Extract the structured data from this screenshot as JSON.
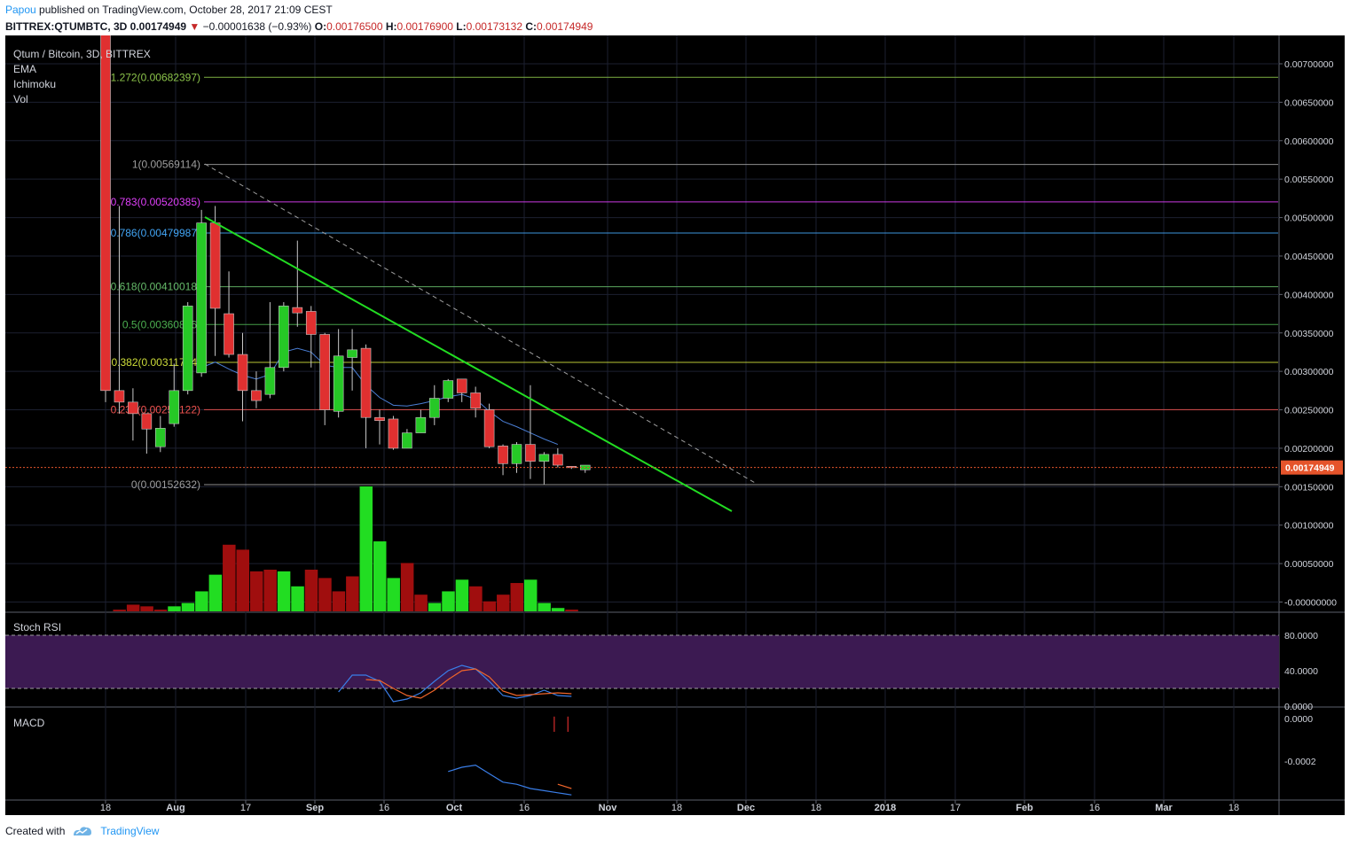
{
  "header": {
    "user": "Papou",
    "published": "published on TradingView.com, October 28, 2017 21:09 CEST",
    "symbol": "BITTREX:QTUMBTC, 3D",
    "last": "0.00174949",
    "change": "−0.00001638 (−0.93%)",
    "o_label": "O:",
    "o_value": "0.00176500",
    "h_label": "H:",
    "h_value": "0.00176900",
    "l_label": "L:",
    "l_value": "0.00173132",
    "c_label": "C:",
    "c_value": "0.00174949"
  },
  "legend": {
    "title": "Qtum / Bitcoin, 3D, BITTREX",
    "items": [
      "EMA",
      "Ichimoku",
      "Vol"
    ]
  },
  "panes": {
    "stoch": "Stoch RSI",
    "macd": "MACD"
  },
  "footer": {
    "created": "Created with",
    "brand": "TradingView"
  },
  "colors": {
    "up": "#26c826",
    "down": "#e03030",
    "vol_up": "#22dd22",
    "vol_down": "#a00e0e",
    "trendline": "#22dd22",
    "price_line": "#e5542b",
    "stoch_band": "#3c1a52",
    "blue": "#3a7ee8",
    "orange": "#f0652a"
  },
  "chart_data": {
    "type": "candlestick",
    "price_axis": {
      "ylim": [
        -5e-05,
        0.0074
      ],
      "ticks": [
        "0.00700000",
        "0.00650000",
        "0.00600000",
        "0.00550000",
        "0.00500000",
        "0.00450000",
        "0.00400000",
        "0.00350000",
        "0.00300000",
        "0.00250000",
        "0.00200000",
        "0.00150000",
        "0.00100000",
        "0.00050000",
        "-0.00000000"
      ],
      "current_price": "0.00174949"
    },
    "time_axis": {
      "labels": [
        "18",
        "Aug",
        "17",
        "Sep",
        "16",
        "Oct",
        "16",
        "Nov",
        "18",
        "Dec",
        "18",
        "2018",
        "17",
        "Feb",
        "16",
        "Mar",
        "18"
      ],
      "bold": [
        "Aug",
        "Sep",
        "Oct",
        "Nov",
        "Dec",
        "2018",
        "Feb",
        "Mar"
      ]
    },
    "fib_levels": [
      {
        "label": "1.272(0.00682397)",
        "value": 0.00682397,
        "color": "#8bc34a"
      },
      {
        "label": "1(0.00569114)",
        "value": 0.00569114,
        "color": "#9e9e9e"
      },
      {
        "label": "0.783(0.00520385)",
        "value": 0.00520385,
        "color": "#e040fb"
      },
      {
        "label": "0.786(0.00479987)",
        "value": 0.00479987,
        "color": "#42a5f5"
      },
      {
        "label": "0.618(0.00410018)",
        "value": 0.00410018,
        "color": "#66bb6a"
      },
      {
        "label": "0.5(0.00360876)",
        "value": 0.00360876,
        "color": "#4caf50"
      },
      {
        "label": "0.382(0.00311734)",
        "value": 0.00311734,
        "color": "#cddc39"
      },
      {
        "label": "0.236(0.00250122)",
        "value": 0.00250122,
        "color": "#ef5350"
      },
      {
        "label": "0(0.00152632)",
        "value": 0.00152632,
        "color": "#9e9e9e"
      }
    ],
    "candles": [
      {
        "o": 0.0074,
        "h": 0.0074,
        "l": 0.0026,
        "c": 0.00275
      },
      {
        "o": 0.00275,
        "h": 0.00515,
        "l": 0.00245,
        "c": 0.0026
      },
      {
        "o": 0.0026,
        "h": 0.00278,
        "l": 0.0021,
        "c": 0.00245
      },
      {
        "o": 0.00245,
        "h": 0.00245,
        "l": 0.00193,
        "c": 0.00225
      },
      {
        "o": 0.00202,
        "h": 0.00242,
        "l": 0.00195,
        "c": 0.00226
      },
      {
        "o": 0.00232,
        "h": 0.0031,
        "l": 0.00228,
        "c": 0.00275
      },
      {
        "o": 0.00275,
        "h": 0.0039,
        "l": 0.0027,
        "c": 0.00385
      },
      {
        "o": 0.00298,
        "h": 0.0051,
        "l": 0.00293,
        "c": 0.00493
      },
      {
        "o": 0.00493,
        "h": 0.00515,
        "l": 0.0032,
        "c": 0.00382
      },
      {
        "o": 0.00375,
        "h": 0.0043,
        "l": 0.00318,
        "c": 0.00322
      },
      {
        "o": 0.00322,
        "h": 0.0035,
        "l": 0.00235,
        "c": 0.00275
      },
      {
        "o": 0.00275,
        "h": 0.003,
        "l": 0.00252,
        "c": 0.00262
      },
      {
        "o": 0.0027,
        "h": 0.0039,
        "l": 0.00265,
        "c": 0.00305
      },
      {
        "o": 0.00305,
        "h": 0.0039,
        "l": 0.003,
        "c": 0.00385
      },
      {
        "o": 0.00383,
        "h": 0.0047,
        "l": 0.00358,
        "c": 0.00376
      },
      {
        "o": 0.00378,
        "h": 0.00385,
        "l": 0.00305,
        "c": 0.00348
      },
      {
        "o": 0.00348,
        "h": 0.0035,
        "l": 0.0023,
        "c": 0.0025
      },
      {
        "o": 0.00248,
        "h": 0.00355,
        "l": 0.0024,
        "c": 0.0032
      },
      {
        "o": 0.00318,
        "h": 0.00355,
        "l": 0.00275,
        "c": 0.00328
      },
      {
        "o": 0.0033,
        "h": 0.00335,
        "l": 0.002,
        "c": 0.0024
      },
      {
        "o": 0.0024,
        "h": 0.0025,
        "l": 0.00205,
        "c": 0.00236
      },
      {
        "o": 0.00238,
        "h": 0.00242,
        "l": 0.00198,
        "c": 0.002
      },
      {
        "o": 0.002,
        "h": 0.00225,
        "l": 0.002,
        "c": 0.0022
      },
      {
        "o": 0.0022,
        "h": 0.0025,
        "l": 0.0022,
        "c": 0.0024
      },
      {
        "o": 0.0024,
        "h": 0.00282,
        "l": 0.0023,
        "c": 0.00265
      },
      {
        "o": 0.00265,
        "h": 0.0029,
        "l": 0.0026,
        "c": 0.00288
      },
      {
        "o": 0.0029,
        "h": 0.0029,
        "l": 0.0026,
        "c": 0.00272
      },
      {
        "o": 0.00272,
        "h": 0.0028,
        "l": 0.0024,
        "c": 0.00252
      },
      {
        "o": 0.0025,
        "h": 0.00258,
        "l": 0.002,
        "c": 0.00202
      },
      {
        "o": 0.00203,
        "h": 0.00205,
        "l": 0.00165,
        "c": 0.0018
      },
      {
        "o": 0.0018,
        "h": 0.00208,
        "l": 0.00168,
        "c": 0.00205
      },
      {
        "o": 0.00205,
        "h": 0.00282,
        "l": 0.0016,
        "c": 0.00183
      },
      {
        "o": 0.00183,
        "h": 0.00195,
        "l": 0.00153,
        "c": 0.00192
      },
      {
        "o": 0.00192,
        "h": 0.002,
        "l": 0.00175,
        "c": 0.00178
      },
      {
        "o": 0.001765,
        "h": 0.001769,
        "l": 0.00173132,
        "c": 0.00174949
      }
    ],
    "last_candle": {
      "o": 0.00172,
      "h": 0.00178,
      "l": 0.00168,
      "c": 0.00178
    },
    "volume": [
      0,
      1e-05,
      4e-05,
      3e-05,
      1e-05,
      3e-05,
      5e-05,
      0.00012,
      0.00022,
      0.0004,
      0.00037,
      0.00024,
      0.00025,
      0.00024,
      0.00015,
      0.00025,
      0.0002,
      0.00012,
      0.00021,
      0.00075,
      0.00042,
      0.0002,
      0.00029,
      0.0001,
      5e-05,
      0.00012,
      0.00019,
      0.00015,
      6e-05,
      0.0001,
      0.00017,
      0.00019,
      5e-05,
      2e-05,
      1e-05
    ],
    "volume_direction": [
      "down",
      "down",
      "down",
      "down",
      "down",
      "up",
      "up",
      "up",
      "up",
      "down",
      "down",
      "down",
      "down",
      "up",
      "up",
      "down",
      "down",
      "down",
      "down",
      "up",
      "up",
      "up",
      "down",
      "down",
      "up",
      "up",
      "up",
      "down",
      "down",
      "down",
      "down",
      "up",
      "up",
      "up",
      "down"
    ],
    "ema": [
      null,
      null,
      null,
      null,
      null,
      null,
      null,
      0.00305,
      0.00312,
      0.00303,
      0.00295,
      0.0029,
      0.00296,
      0.00325,
      0.0033,
      0.00325,
      0.00308,
      0.00305,
      0.00305,
      0.00282,
      0.00266,
      0.00256,
      0.00255,
      0.00258,
      0.00262,
      0.00267,
      0.0027,
      0.00264,
      0.00248,
      0.00235,
      0.00228,
      0.0022,
      0.00212,
      0.00205,
      null
    ],
    "stoch_rsi": {
      "ylim": [
        0,
        100
      ],
      "ticks": [
        "80.0000",
        "40.0000",
        "0.0000"
      ],
      "band": [
        20,
        80
      ],
      "k": [
        null,
        null,
        null,
        null,
        null,
        null,
        null,
        null,
        null,
        null,
        null,
        null,
        null,
        null,
        null,
        null,
        null,
        16,
        35,
        35,
        28,
        5,
        8,
        15,
        28,
        40,
        46,
        42,
        28,
        12,
        9,
        12,
        18,
        12,
        11
      ],
      "d": [
        null,
        null,
        null,
        null,
        null,
        null,
        null,
        null,
        null,
        null,
        null,
        null,
        null,
        null,
        null,
        null,
        null,
        null,
        null,
        30,
        29,
        20,
        12,
        9,
        18,
        30,
        40,
        42,
        33,
        17,
        12,
        13,
        14,
        15,
        14
      ]
    },
    "macd": {
      "ylim": [
        -0.00038,
        2e-05
      ],
      "ticks": [
        "0.0000",
        "-0.0002"
      ],
      "macd": [
        null,
        null,
        null,
        null,
        null,
        null,
        null,
        null,
        null,
        null,
        null,
        null,
        null,
        null,
        null,
        null,
        null,
        null,
        null,
        null,
        null,
        null,
        null,
        null,
        null,
        -0.00025,
        -0.00023,
        -0.00022,
        -0.00026,
        -0.0003,
        -0.00031,
        -0.00033,
        -0.00034,
        -0.00035,
        -0.00036
      ],
      "signal": [
        null,
        null,
        null,
        null,
        null,
        null,
        null,
        null,
        null,
        null,
        null,
        null,
        null,
        null,
        null,
        null,
        null,
        null,
        null,
        null,
        null,
        null,
        null,
        null,
        null,
        null,
        null,
        null,
        null,
        null,
        null,
        null,
        null,
        -0.00031,
        -0.00033
      ],
      "histogram": [
        0,
        0,
        0,
        0,
        0,
        0,
        0,
        0,
        0,
        0,
        0,
        0,
        0,
        0,
        0,
        0,
        0,
        0,
        0,
        0,
        0,
        0,
        0,
        0,
        0,
        0,
        0,
        0,
        0,
        0,
        0,
        0,
        0,
        -8e-05,
        -8e-05
      ]
    }
  }
}
